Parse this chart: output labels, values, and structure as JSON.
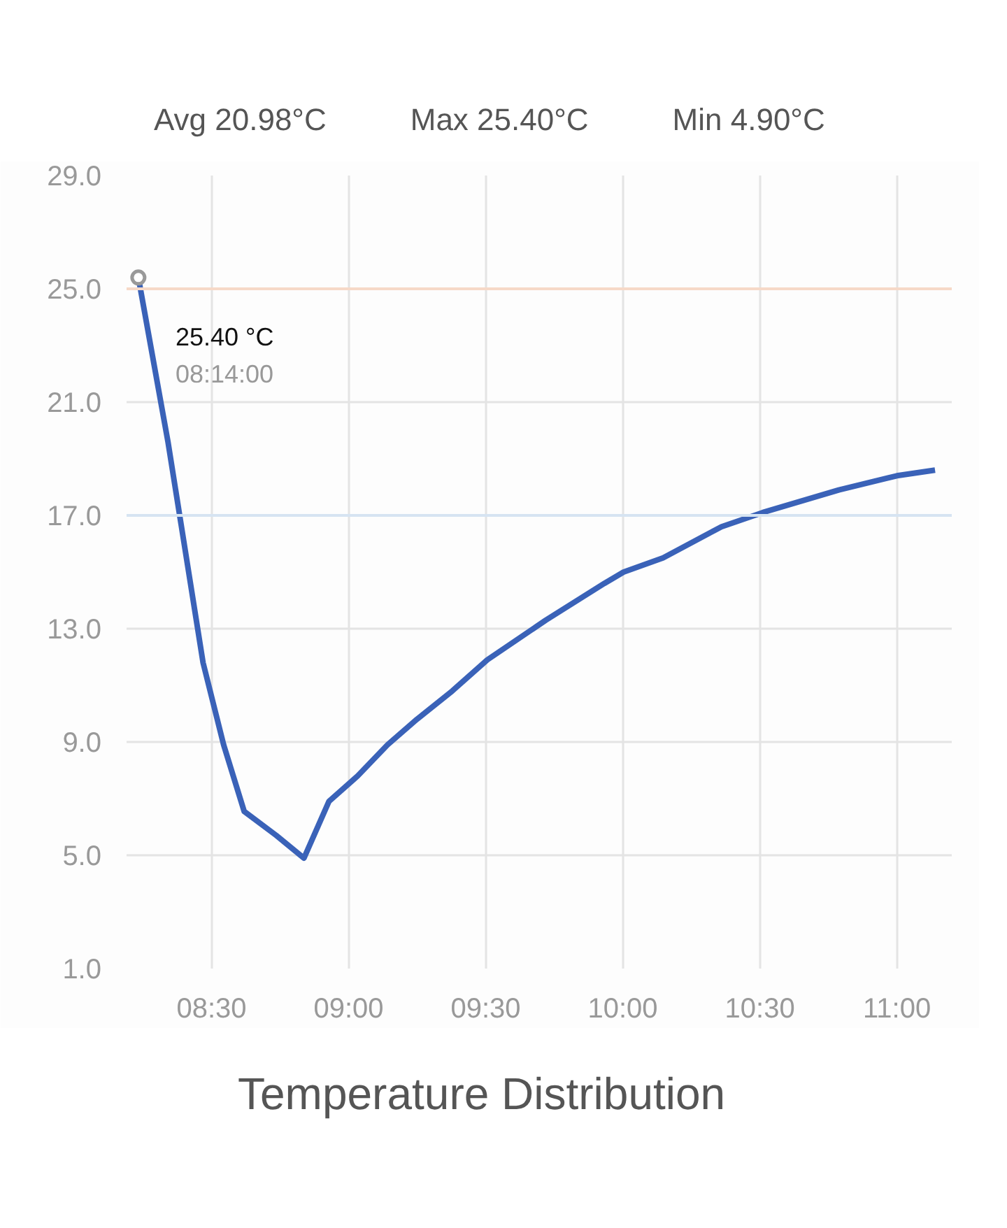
{
  "chart_data": {
    "type": "line",
    "title": "Temperature Distribution",
    "annotations": [
      "Avg 20.98°C",
      "Max 25.40°C",
      "Min 4.90°C",
      {
        "text": "25.40 °C\n08:14:00",
        "x": 8.233,
        "y": 25.4
      }
    ],
    "x": [
      8.233,
      8.341,
      8.469,
      8.544,
      8.619,
      8.736,
      8.837,
      8.928,
      9.033,
      9.142,
      9.249,
      9.378,
      9.506,
      9.719,
      9.933,
      10.003,
      10.147,
      10.36,
      10.51,
      10.788,
      11.0,
      11.139
    ],
    "series": [
      {
        "color": "#3a62b8",
        "values": [
          25.4,
          19.6,
          11.8,
          8.9,
          6.55,
          5.7,
          4.9,
          6.9,
          7.8,
          8.9,
          9.8,
          10.8,
          11.9,
          13.3,
          14.6,
          15.0,
          15.5,
          16.6,
          17.1,
          17.9,
          18.4,
          18.6
        ]
      }
    ],
    "xlim": [
      8.19,
      11.2
    ],
    "xticks": [
      {
        "value": 8.5,
        "label": "08:30"
      },
      {
        "value": 9.0,
        "label": "09:00"
      },
      {
        "value": 9.5,
        "label": "09:30"
      },
      {
        "value": 10.0,
        "label": "10:00"
      },
      {
        "value": 10.5,
        "label": "10:30"
      },
      {
        "value": 11.0,
        "label": "11:00"
      }
    ],
    "ylim": [
      1,
      29
    ],
    "yticks": [
      {
        "value": 1,
        "label": "1.0"
      },
      {
        "value": 5,
        "label": "5.0"
      },
      {
        "value": 9,
        "label": "9.0"
      },
      {
        "value": 13,
        "label": "13.0"
      },
      {
        "value": 17,
        "label": "17.0"
      },
      {
        "value": 21,
        "label": "21.0"
      },
      {
        "value": 25,
        "label": "25.0"
      },
      {
        "value": 29,
        "label": "29.0"
      }
    ],
    "ref_lines": [
      {
        "axis": "y",
        "value": 25,
        "color": "#f6d9c8"
      },
      {
        "axis": "y",
        "value": 17,
        "color": "#d6e4f2"
      }
    ],
    "grid": true,
    "marker": "none",
    "line_style": "solid"
  }
}
